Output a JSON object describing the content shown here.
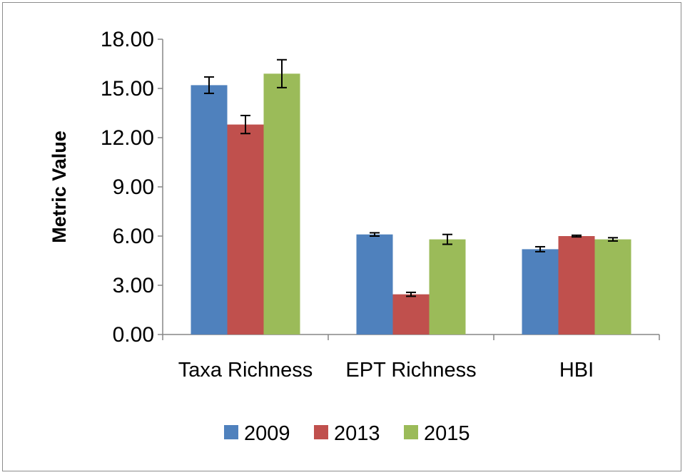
{
  "chart_data": {
    "type": "bar",
    "title": "",
    "xlabel": "",
    "ylabel": "Metric Value",
    "ylim": [
      0,
      18
    ],
    "yticks": [
      "0.00",
      "3.00",
      "6.00",
      "9.00",
      "12.00",
      "15.00",
      "18.00"
    ],
    "categories": [
      "Taxa Richness",
      "EPT Richness",
      "HBI"
    ],
    "series": [
      {
        "name": "2009",
        "color": "#4f81bd",
        "values": [
          15.2,
          6.1,
          5.2
        ],
        "errors": [
          0.5,
          0.1,
          0.15
        ]
      },
      {
        "name": "2013",
        "color": "#c0504d",
        "values": [
          12.8,
          2.45,
          6.0
        ],
        "errors": [
          0.55,
          0.12,
          0.05
        ]
      },
      {
        "name": "2015",
        "color": "#9bbb59",
        "values": [
          15.9,
          5.8,
          5.8
        ],
        "errors": [
          0.85,
          0.3,
          0.1
        ]
      }
    ],
    "legend": "bottom",
    "grid": false,
    "error_bars": true
  }
}
